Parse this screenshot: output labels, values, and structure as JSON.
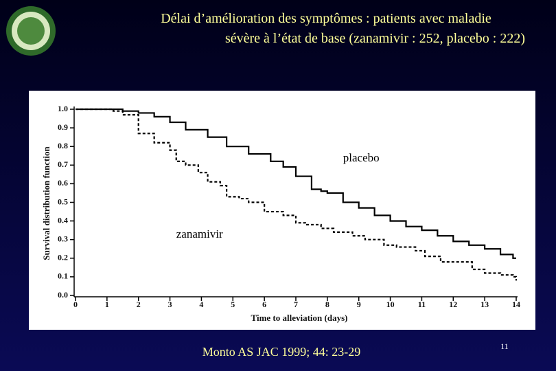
{
  "chart_data": {
    "type": "step",
    "title": [
      "Délai d’amélioration des symptômes : patients avec maladie",
      "sévère à l’état de base (zanamivir : 252, placebo : 222)"
    ],
    "xlabel": "Time to alleviation (days)",
    "ylabel": "Survival distribution function",
    "xlim": [
      0,
      14
    ],
    "ylim": [
      0,
      1
    ],
    "xticks": [
      0,
      1,
      2,
      3,
      4,
      5,
      6,
      7,
      8,
      9,
      10,
      11,
      12,
      13,
      14
    ],
    "yticks": [
      {
        "value": 1,
        "label": "1.0"
      },
      0.9,
      0.8,
      0.7,
      0.6,
      0.5,
      0.4,
      0.3,
      0.2,
      0.1,
      {
        "value": 0,
        "label": "0.0"
      }
    ],
    "series": [
      {
        "color": "#000000",
        "dash": false,
        "x": [
          0,
          1.5,
          2.0,
          2.5,
          3.0,
          3.5,
          4.2,
          4.8,
          5.5,
          6.2,
          6.6,
          7.0,
          7.5,
          7.8,
          8.0,
          8.5,
          9.0,
          9.5,
          10.0,
          10.5,
          11.0,
          11.5,
          12.0,
          12.5,
          13.0,
          13.5,
          13.9,
          14
        ],
        "values": [
          1.0,
          0.99,
          0.98,
          0.96,
          0.93,
          0.89,
          0.85,
          0.8,
          0.76,
          0.72,
          0.69,
          0.64,
          0.57,
          0.56,
          0.55,
          0.5,
          0.47,
          0.43,
          0.4,
          0.37,
          0.35,
          0.32,
          0.29,
          0.27,
          0.25,
          0.22,
          0.2,
          0.2
        ]
      },
      {
        "color": "#000000",
        "dash": true,
        "x": [
          0,
          1.2,
          1.5,
          2.0,
          2.5,
          3.0,
          3.2,
          3.5,
          3.9,
          4.2,
          4.6,
          4.8,
          5.2,
          5.5,
          6.0,
          6.6,
          7.0,
          7.3,
          7.8,
          8.2,
          8.8,
          9.2,
          9.8,
          10.2,
          10.8,
          11.1,
          11.6,
          12.2,
          12.6,
          13.0,
          13.5,
          13.9,
          14
        ],
        "values": [
          1.0,
          0.99,
          0.97,
          0.87,
          0.82,
          0.78,
          0.72,
          0.7,
          0.66,
          0.61,
          0.59,
          0.53,
          0.52,
          0.5,
          0.45,
          0.43,
          0.39,
          0.38,
          0.36,
          0.34,
          0.32,
          0.3,
          0.27,
          0.26,
          0.24,
          0.21,
          0.18,
          0.18,
          0.14,
          0.12,
          0.11,
          0.1,
          0.08
        ]
      }
    ],
    "annotations": [
      {
        "text": "placebo",
        "x": 8.5,
        "y": 0.72
      },
      {
        "text": "zanamivir",
        "x": 3.2,
        "y": 0.31
      }
    ],
    "source": "Monto AS JAC 1999; 44: 23-29",
    "page_number": "11"
  }
}
